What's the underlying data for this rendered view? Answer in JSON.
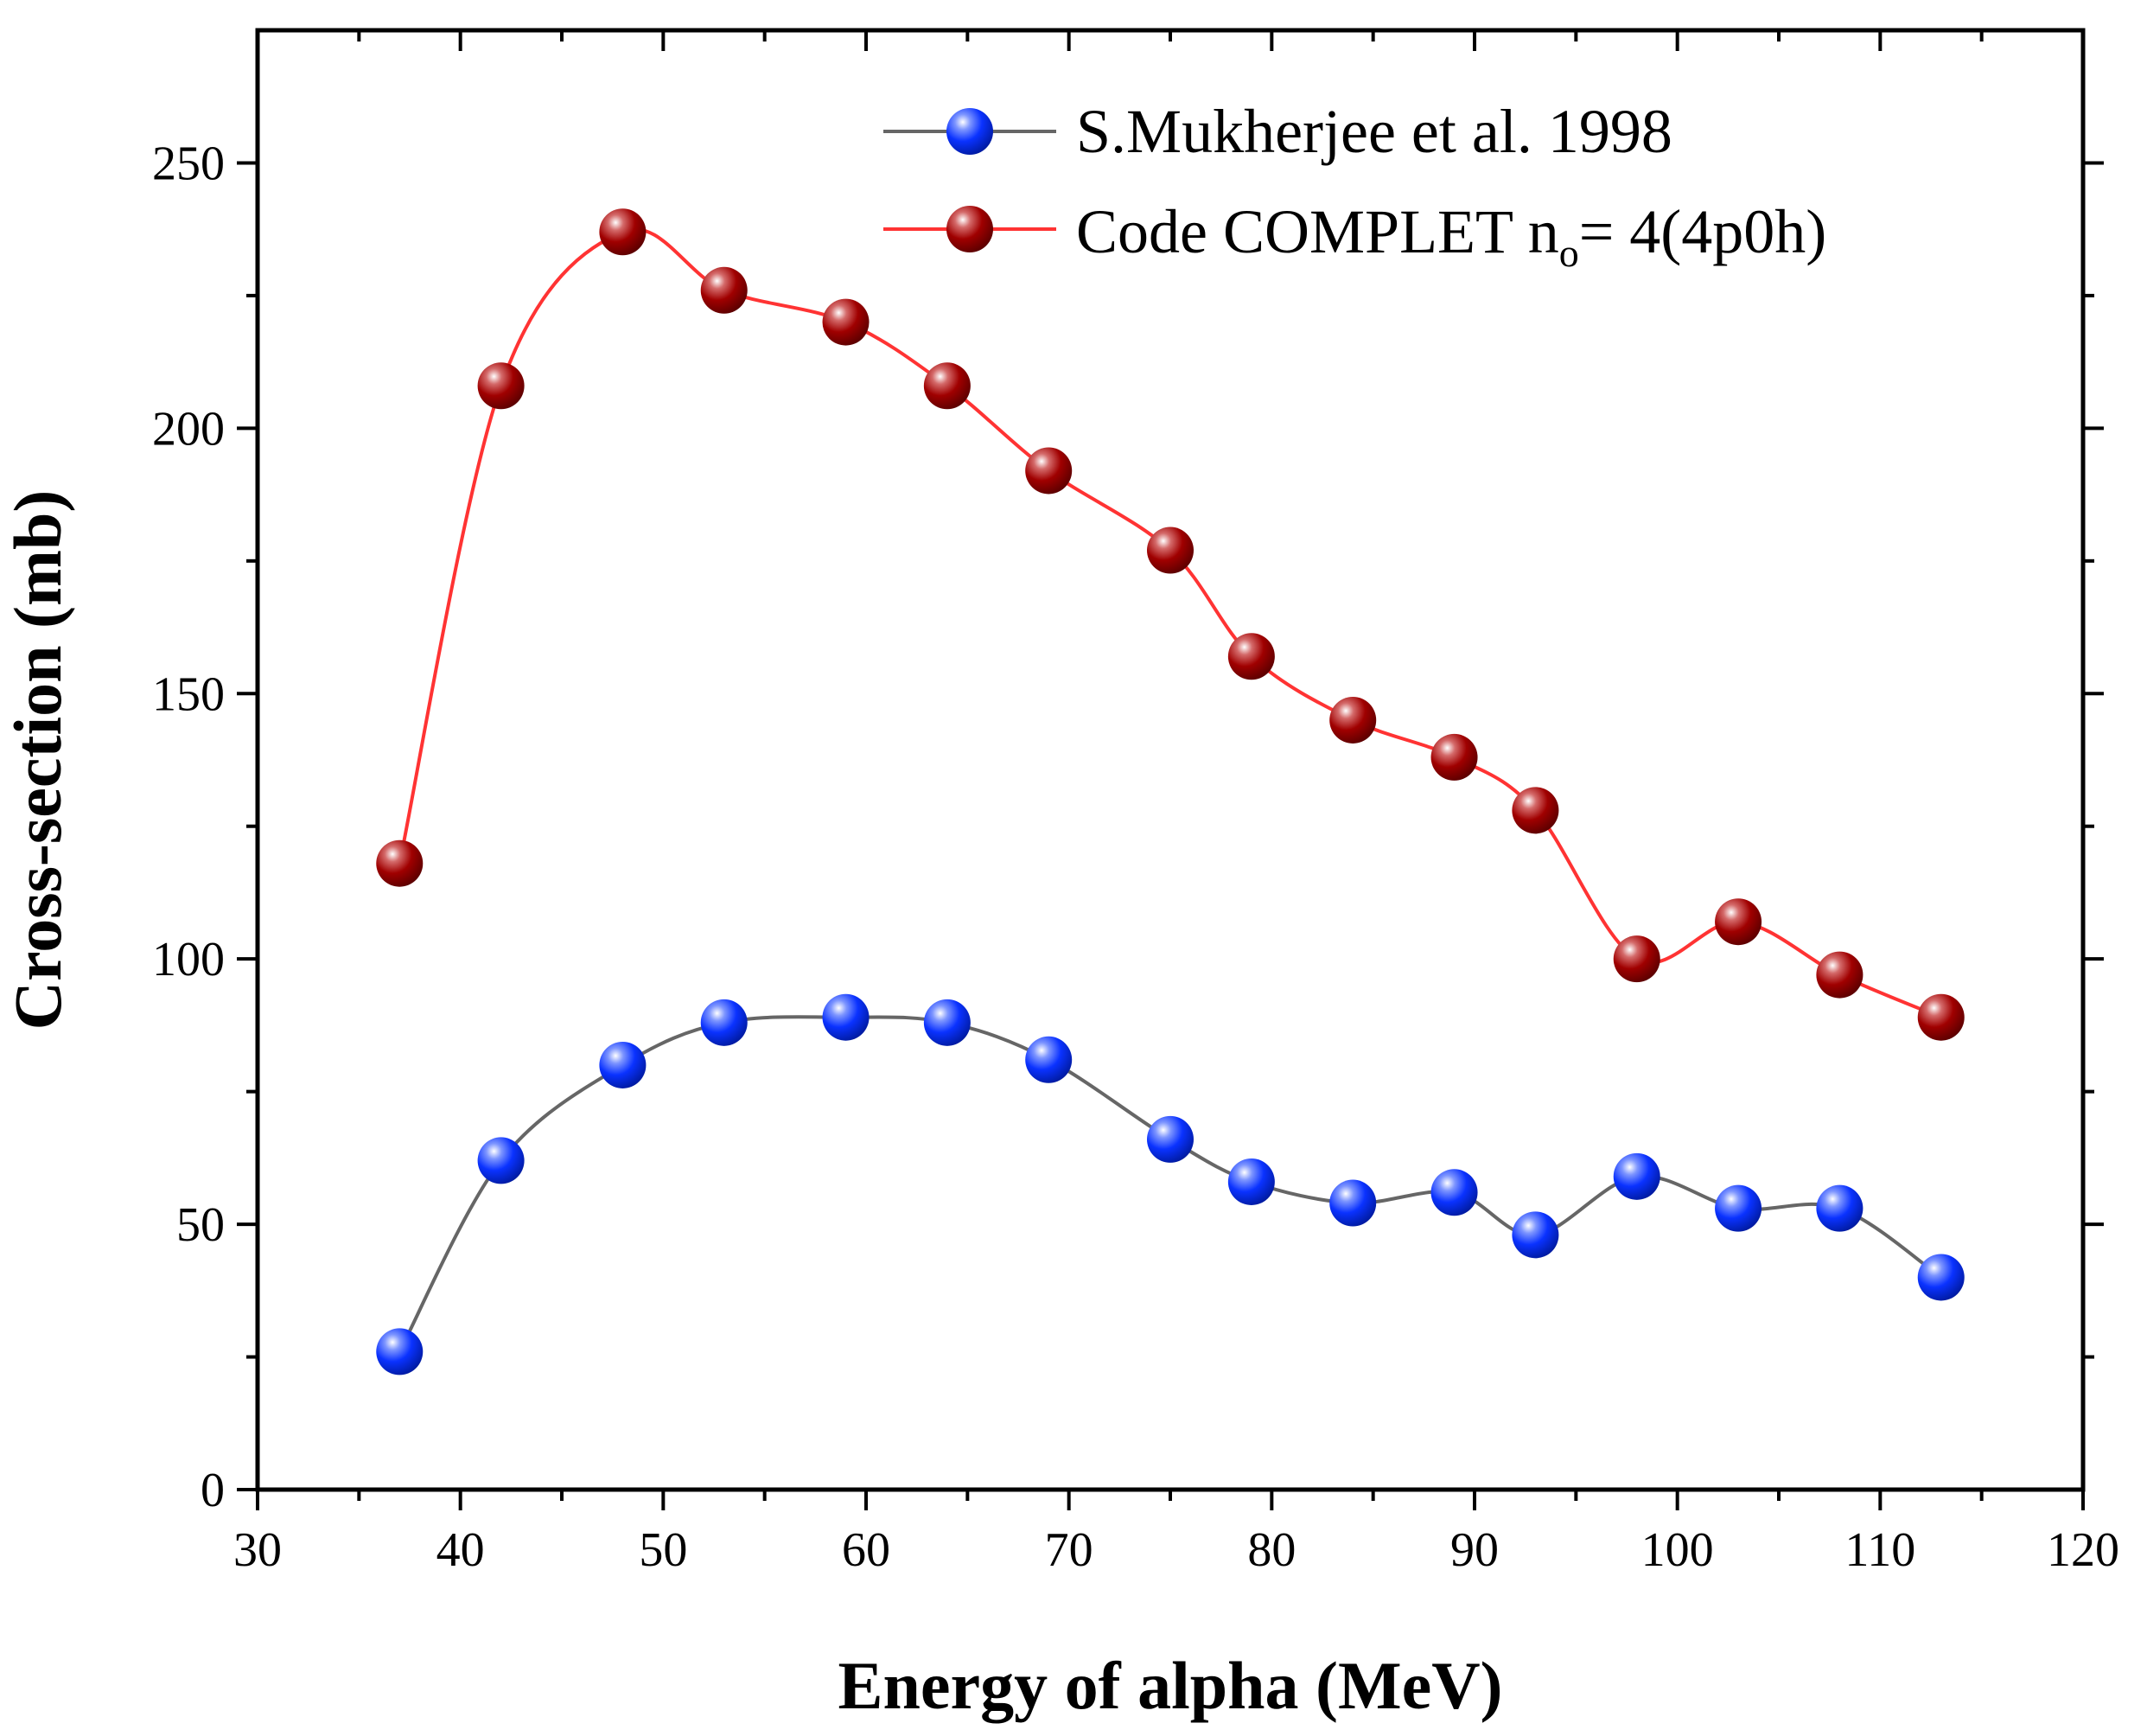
{
  "chart_data": {
    "type": "line",
    "title": "",
    "xlabel": "Energy of alpha (MeV)",
    "ylabel": "Cross-section (mb)",
    "xlim": [
      30,
      120
    ],
    "ylim": [
      0,
      275
    ],
    "x_ticks": [
      30,
      40,
      50,
      60,
      70,
      80,
      90,
      100,
      110,
      120
    ],
    "y_ticks": [
      0,
      50,
      100,
      150,
      200,
      250
    ],
    "x_tick_labels": [
      "30",
      "40",
      "50",
      "60",
      "70",
      "80",
      "90",
      "100",
      "110",
      "120"
    ],
    "y_tick_labels": [
      "0",
      "50",
      "100",
      "150",
      "200",
      "250"
    ],
    "grid": false,
    "legend_position": "top-right",
    "series": [
      {
        "name": "S.Mukherjee et al. 1998",
        "line_color": "#666666",
        "marker_color": "#0a32ff",
        "marker_dark": "#001a9e",
        "x": [
          37,
          42,
          48,
          53,
          59,
          64,
          69,
          75,
          79,
          84,
          89,
          93,
          98,
          103,
          108,
          113
        ],
        "values": [
          26,
          62,
          80,
          88,
          89,
          88,
          81,
          66,
          58,
          54,
          56,
          48,
          59,
          53,
          53,
          40
        ]
      },
      {
        "name": "Code COMPLET",
        "name_suffix_a": " n",
        "name_subscript": "o",
        "name_suffix_b": "= 4(4p0h)",
        "line_color": "#ff3333",
        "marker_color": "#a00000",
        "marker_dark": "#5a0000",
        "x": [
          37,
          42,
          48,
          53,
          59,
          64,
          69,
          75,
          79,
          84,
          89,
          93,
          98,
          103,
          108,
          113
        ],
        "values": [
          118,
          208,
          237,
          226,
          220,
          208,
          192,
          177,
          157,
          145,
          138,
          128,
          100,
          107,
          97,
          89
        ]
      }
    ]
  }
}
